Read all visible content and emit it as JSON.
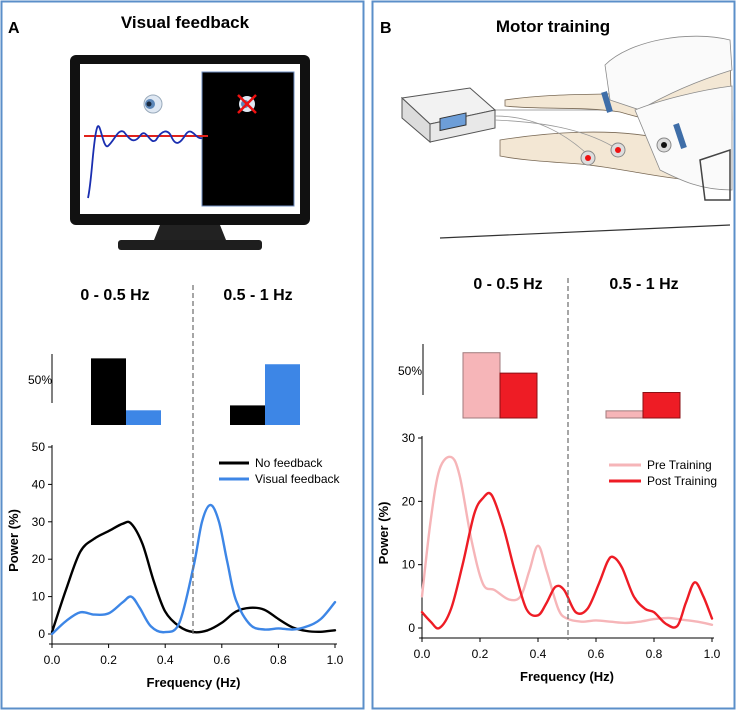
{
  "colors": {
    "panel_border": "#5b8fc9",
    "black_series": "#000000",
    "blue_series": "#3d86e6",
    "pre_training": "#f6b5b8",
    "post_training": "#ee1c25",
    "dashed": "#777777"
  },
  "panel_a": {
    "letter": "A",
    "title": "Visual feedback",
    "band_low": "0 - 0.5 Hz",
    "band_high": "0.5 - 1 Hz",
    "scale_label": "50%",
    "illustration": "computer-monitor-visual-feedback"
  },
  "panel_b": {
    "letter": "B",
    "title": "Motor training",
    "band_low": "0 - 0.5 Hz",
    "band_high": "0.5 - 1 Hz",
    "scale_label": "50%",
    "illustration": "arm-electrical-stimulation"
  },
  "chart_data": [
    {
      "id": "a-bars",
      "type": "bar",
      "categories": [
        "0 - 0.5 Hz",
        "0.5 - 1 Hz"
      ],
      "series": [
        {
          "name": "No feedback",
          "values": [
            68,
            20
          ]
        },
        {
          "name": "Visual feedback",
          "values": [
            15,
            62
          ]
        }
      ],
      "scale_label": "50%"
    },
    {
      "id": "a-line",
      "type": "line",
      "title": "",
      "xlabel": "Frequency (Hz)",
      "ylabel": "Power (%)",
      "xlim": [
        0,
        1
      ],
      "ylim": [
        0,
        50
      ],
      "xticks": [
        "0.0",
        "0.2",
        "0.4",
        "0.6",
        "0.8",
        "1.0"
      ],
      "yticks": [
        "0",
        "10",
        "20",
        "30",
        "40",
        "50"
      ],
      "legend_position": "top-right",
      "series": [
        {
          "name": "No feedback",
          "x": [
            0,
            0.05,
            0.1,
            0.15,
            0.2,
            0.25,
            0.28,
            0.32,
            0.36,
            0.4,
            0.45,
            0.5,
            0.55,
            0.6,
            0.65,
            0.7,
            0.75,
            0.8,
            0.85,
            0.9,
            0.95,
            1.0
          ],
          "y": [
            0.5,
            12,
            22,
            25.5,
            27.5,
            29.5,
            29.5,
            24,
            14,
            6,
            2,
            0.5,
            1,
            3,
            6,
            7,
            6.5,
            4,
            1.8,
            0.8,
            0.6,
            1
          ]
        },
        {
          "name": "Visual feedback",
          "x": [
            0,
            0.05,
            0.1,
            0.15,
            0.2,
            0.25,
            0.28,
            0.31,
            0.35,
            0.4,
            0.45,
            0.5,
            0.53,
            0.56,
            0.59,
            0.62,
            0.65,
            0.7,
            0.75,
            0.8,
            0.85,
            0.9,
            0.95,
            1.0
          ],
          "y": [
            0,
            3.5,
            5.8,
            5.2,
            5.5,
            8.5,
            10,
            7,
            2,
            0.5,
            3,
            18,
            30,
            34.5,
            30,
            19,
            9,
            2.5,
            1.2,
            1.5,
            1.2,
            2,
            4,
            8.5
          ]
        }
      ]
    },
    {
      "id": "b-bars",
      "type": "bar",
      "categories": [
        "0 - 0.5 Hz",
        "0.5 - 1 Hz"
      ],
      "series": [
        {
          "name": "Pre Training",
          "values": [
            64,
            7
          ]
        },
        {
          "name": "Post Training",
          "values": [
            44,
            25
          ]
        }
      ],
      "scale_label": "50%"
    },
    {
      "id": "b-line",
      "type": "line",
      "title": "",
      "xlabel": "Frequency (Hz)",
      "ylabel": "Power (%)",
      "xlim": [
        0,
        1
      ],
      "ylim": [
        0,
        30
      ],
      "xticks": [
        "0.0",
        "0.2",
        "0.4",
        "0.6",
        "0.8",
        "1.0"
      ],
      "yticks": [
        "0",
        "10",
        "20",
        "30"
      ],
      "legend_position": "top-right",
      "series": [
        {
          "name": "Pre Training",
          "x": [
            0,
            0.03,
            0.06,
            0.1,
            0.13,
            0.17,
            0.21,
            0.25,
            0.3,
            0.34,
            0.37,
            0.4,
            0.43,
            0.47,
            0.5,
            0.55,
            0.6,
            0.65,
            0.7,
            0.75,
            0.8,
            0.85,
            0.9,
            0.95,
            1.0
          ],
          "y": [
            5,
            17,
            25,
            27,
            24,
            14,
            7,
            6,
            4.5,
            5,
            9,
            13,
            9,
            3,
            1.5,
            1,
            1.2,
            1,
            0.8,
            1,
            1.4,
            1.6,
            1.3,
            1,
            0.5
          ]
        },
        {
          "name": "Post Training",
          "x": [
            0,
            0.03,
            0.06,
            0.1,
            0.14,
            0.18,
            0.21,
            0.24,
            0.28,
            0.32,
            0.36,
            0.4,
            0.43,
            0.46,
            0.49,
            0.53,
            0.57,
            0.61,
            0.64,
            0.66,
            0.69,
            0.73,
            0.77,
            0.8,
            0.84,
            0.88,
            0.91,
            0.94,
            0.97,
            1.0
          ],
          "y": [
            2.5,
            1,
            0,
            3,
            10,
            18,
            20.5,
            21,
            16,
            9,
            3,
            2,
            4,
            6.5,
            6,
            2.5,
            3,
            7,
            10.5,
            11.2,
            9.5,
            5,
            3,
            2.5,
            0.7,
            0.3,
            4,
            7.2,
            5,
            1.5
          ]
        }
      ]
    }
  ]
}
